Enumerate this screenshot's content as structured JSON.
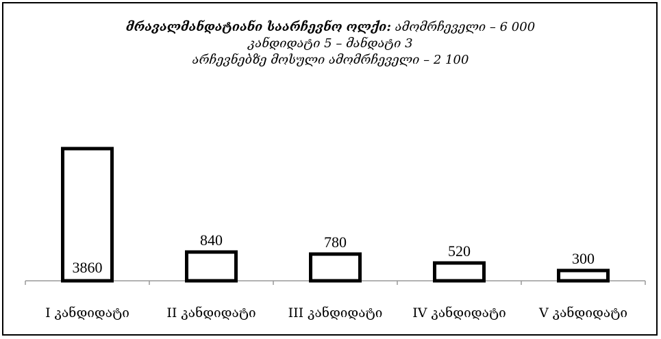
{
  "chart_data": {
    "type": "bar",
    "title_lines": [
      {
        "bold": "მრავალმანდატიანი საარჩევნო ოლქი:",
        "rest": " ამომრჩეველი – 6 000"
      },
      {
        "bold": "",
        "rest": "კანდიდატი 5 – მანდატი 3"
      },
      {
        "bold": "",
        "rest": "არჩევნებზე მოსული ამომრჩეველი – 2 100"
      }
    ],
    "categories": [
      "I  კანდიდატი",
      "II  კანდიდატი",
      "III  კანდიდატი",
      "IV  კანდიდატი",
      "V  კანდიდატი"
    ],
    "values": [
      3860,
      840,
      780,
      520,
      300
    ],
    "data_labels": [
      "3860",
      "840",
      "780",
      "520",
      "300"
    ],
    "ylim": [
      0,
      4400
    ],
    "grid": false,
    "legend": "none",
    "bar_fill": "#ffffff",
    "bar_stroke": "#000000"
  }
}
